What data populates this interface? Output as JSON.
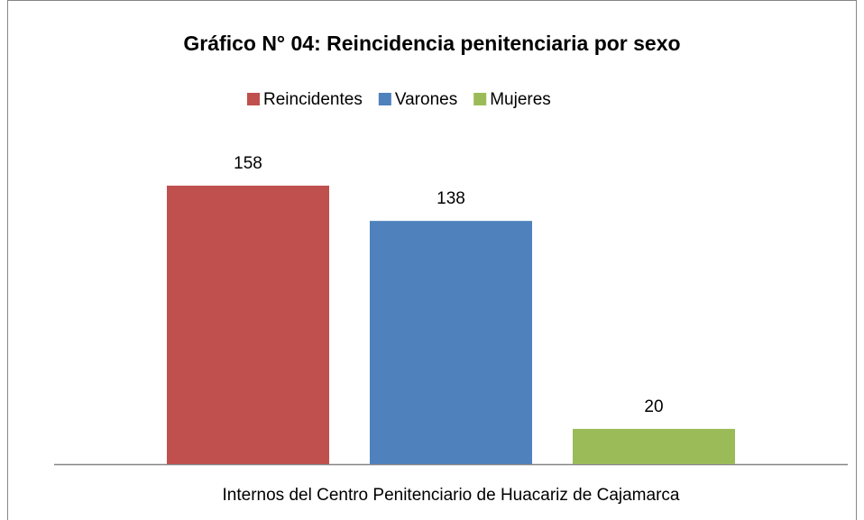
{
  "chart_data": {
    "type": "bar",
    "title": "Gráfico N° 04: Reincidencia penitenciaria por sexo",
    "categories": [
      "Internos del Centro Penitenciario de Huacariz de Cajamarca"
    ],
    "series": [
      {
        "name": "Reincidentes",
        "color": "#c0504d",
        "values": [
          158
        ]
      },
      {
        "name": "Varones",
        "color": "#4f81bd",
        "values": [
          138
        ]
      },
      {
        "name": "Mujeres",
        "color": "#9bbb59",
        "values": [
          20
        ]
      }
    ],
    "ylim": [
      0,
      180
    ],
    "legend": "top"
  }
}
